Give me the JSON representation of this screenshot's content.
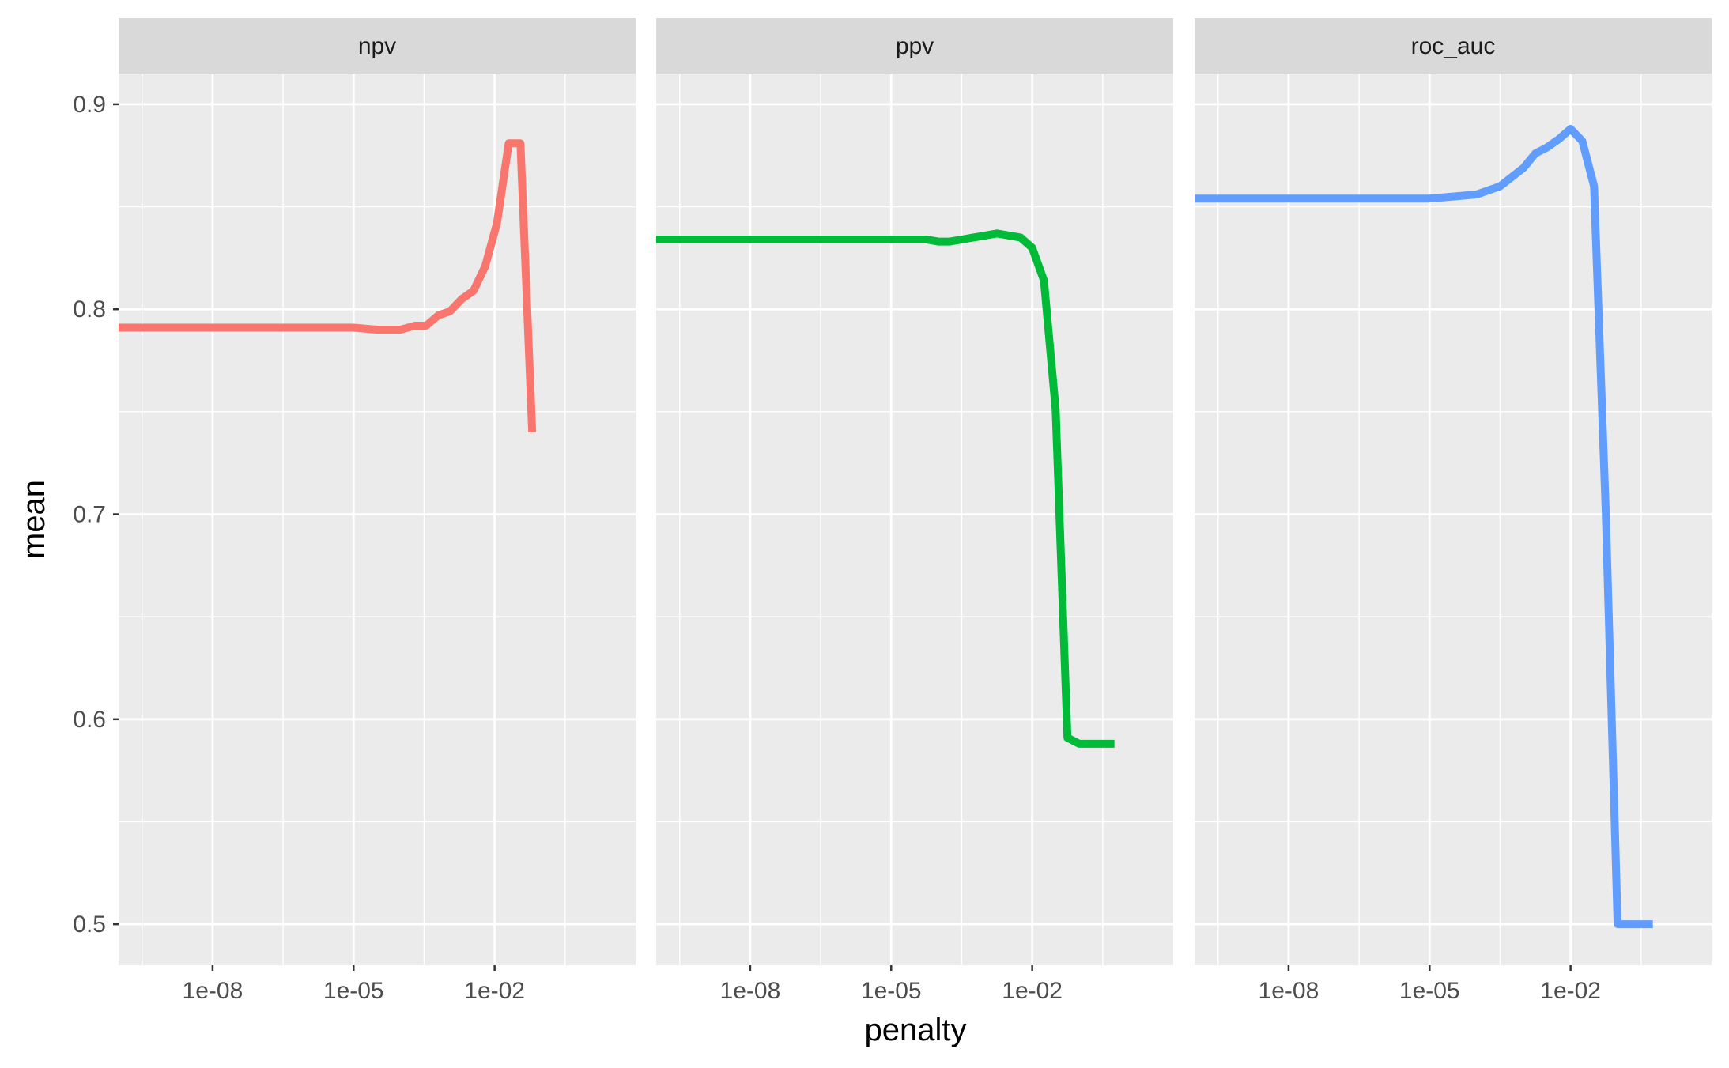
{
  "chart_data": {
    "type": "line",
    "facets": [
      "npv",
      "ppv",
      "roc_auc"
    ],
    "xlabel": "penalty",
    "ylabel": "mean",
    "xscale": "log10",
    "xlim": [
      1e-10,
      10
    ],
    "ylim": [
      0.48,
      0.915
    ],
    "x_ticks": [
      1e-08,
      1e-05,
      0.01
    ],
    "x_tick_labels": [
      "1e-08",
      "1e-05",
      "1e-02"
    ],
    "y_ticks": [
      0.5,
      0.6,
      0.7,
      0.8,
      0.9
    ],
    "y_tick_labels": [
      "0.5",
      "0.6",
      "0.7",
      "0.8",
      "0.9"
    ],
    "grid": true,
    "legend": "none",
    "series": [
      {
        "name": "npv",
        "color": "#F8766D",
        "x": [
          1e-10,
          1e-09,
          1e-08,
          1e-07,
          1e-06,
          1e-05,
          3.26e-05,
          0.0001,
          0.0002,
          0.00035,
          0.00063,
          0.00112,
          0.002,
          0.00355,
          0.0063,
          0.0112,
          0.02,
          0.0355,
          0.0631
        ],
        "values": [
          0.791,
          0.791,
          0.791,
          0.791,
          0.791,
          0.791,
          0.79,
          0.79,
          0.792,
          0.792,
          0.797,
          0.799,
          0.805,
          0.809,
          0.821,
          0.842,
          0.881,
          0.881,
          0.74
        ]
      },
      {
        "name": "ppv",
        "color": "#00BA38",
        "x": [
          1e-10,
          1e-09,
          1e-08,
          1e-07,
          1e-06,
          1e-05,
          1.78e-05,
          3.16e-05,
          5.62e-05,
          0.0001,
          0.000178,
          0.000316,
          0.000562,
          0.001,
          0.00178,
          0.00316,
          0.00562,
          0.01,
          0.0178,
          0.0316,
          0.0562,
          0.1,
          0.178,
          0.316,
          0.562
        ],
        "values": [
          0.834,
          0.834,
          0.834,
          0.834,
          0.834,
          0.834,
          0.834,
          0.834,
          0.834,
          0.833,
          0.833,
          0.834,
          0.835,
          0.836,
          0.837,
          0.836,
          0.835,
          0.83,
          0.814,
          0.751,
          0.591,
          0.588,
          0.588,
          0.588,
          0.588
        ]
      },
      {
        "name": "roc_auc",
        "color": "#619CFF",
        "x": [
          1e-10,
          1e-09,
          1e-08,
          1e-07,
          1e-06,
          1e-05,
          3.16e-05,
          0.0001,
          0.000316,
          0.001,
          0.00178,
          0.00316,
          0.00562,
          0.01,
          0.0178,
          0.0316,
          0.0562,
          0.1,
          0.178,
          0.316,
          0.562
        ],
        "values": [
          0.854,
          0.854,
          0.854,
          0.854,
          0.854,
          0.854,
          0.855,
          0.856,
          0.86,
          0.869,
          0.876,
          0.879,
          0.883,
          0.888,
          0.882,
          0.86,
          0.7,
          0.5,
          0.5,
          0.5,
          0.5
        ]
      }
    ]
  }
}
